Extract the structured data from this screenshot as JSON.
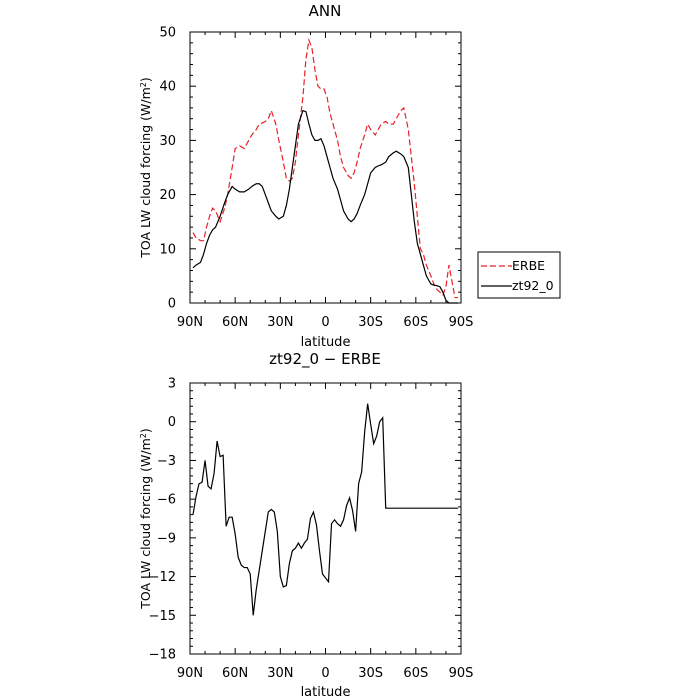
{
  "chart_data": [
    {
      "type": "line",
      "title": "ANN",
      "xlabel": "latitude",
      "ylabel": "TOA LW cloud forcing (W/m",
      "ylabel_sup": "2",
      "ylabel_end": ")",
      "xlim": [
        90,
        -90
      ],
      "ylim": [
        0,
        50
      ],
      "x_ticks": [
        90,
        60,
        30,
        0,
        -30,
        -60,
        -90
      ],
      "x_tick_labels": [
        "90N",
        "60N",
        "30N",
        "0",
        "30S",
        "60S",
        "90S"
      ],
      "y_ticks": [
        0,
        10,
        20,
        30,
        40,
        50
      ],
      "y_tick_labels": [
        "0",
        "10",
        "20",
        "30",
        "40",
        "50"
      ],
      "legend": {
        "placement": "right",
        "entries": [
          "ERBE",
          "zt92_0"
        ]
      },
      "series": [
        {
          "name": "ERBE",
          "color": "#e8212a",
          "dash": true,
          "x": [
            88,
            86,
            83,
            81,
            79,
            77,
            75,
            73,
            70,
            67,
            65,
            62,
            60,
            57,
            54,
            51,
            49,
            46,
            44,
            42,
            40,
            38,
            36,
            33,
            31,
            28,
            26,
            24,
            22,
            20,
            18,
            15,
            13,
            11,
            9,
            7,
            5,
            3,
            1,
            -1,
            -3,
            -5,
            -8,
            -10,
            -12,
            -15,
            -17,
            -19,
            -21,
            -23,
            -26,
            -28,
            -30,
            -33,
            -35,
            -37,
            -40,
            -42,
            -45,
            -47,
            -50,
            -52,
            -55,
            -57,
            -59,
            -61,
            -63,
            -65,
            -67,
            -70,
            -72,
            -74,
            -76,
            -78,
            -80,
            -82,
            -84,
            -86,
            -88
          ],
          "y": [
            13,
            12,
            11.5,
            11.5,
            14,
            16,
            17.5,
            17,
            15,
            17.5,
            20,
            25,
            28.5,
            29,
            28.5,
            30,
            31,
            32,
            33,
            33.2,
            33.5,
            34,
            35.5,
            33,
            30,
            26,
            23,
            22.5,
            23,
            26,
            31,
            38,
            45,
            48.5,
            47,
            43,
            40,
            39.5,
            39.5,
            38,
            35,
            33,
            30,
            27,
            25,
            23.5,
            23,
            24,
            26,
            28.5,
            31,
            33,
            32,
            31,
            32,
            33,
            33.5,
            33,
            33,
            34,
            35.5,
            36,
            32,
            27,
            22,
            16,
            10,
            9,
            7,
            5,
            3.5,
            2.5,
            2,
            1.5,
            3,
            7,
            4,
            1,
            1
          ]
        },
        {
          "name": "zt92_0",
          "color": "#000000",
          "dash": false,
          "x": [
            88,
            86,
            83,
            81,
            79,
            77,
            75,
            73,
            70,
            67,
            65,
            62,
            60,
            57,
            54,
            51,
            49,
            46,
            44,
            42,
            40,
            38,
            36,
            33,
            31,
            28,
            26,
            24,
            22,
            20,
            18,
            15,
            13,
            11,
            9,
            7,
            5,
            3,
            1,
            -1,
            -3,
            -5,
            -8,
            -10,
            -12,
            -15,
            -17,
            -19,
            -21,
            -23,
            -26,
            -28,
            -30,
            -33,
            -35,
            -37,
            -40,
            -42,
            -45,
            -47,
            -50,
            -52,
            -55,
            -57,
            -59,
            -61,
            -63,
            -65,
            -67,
            -70,
            -72,
            -74,
            -76,
            -78,
            -80,
            -82,
            -84,
            -86,
            -88
          ],
          "y": [
            6.5,
            7,
            7.5,
            9,
            11,
            12.5,
            13.5,
            14,
            16,
            18.5,
            20,
            21.5,
            21,
            20.5,
            20.5,
            21,
            21.5,
            22,
            22,
            21.5,
            20,
            18.5,
            17,
            16,
            15.5,
            16,
            18,
            21,
            25,
            29,
            33,
            35.5,
            35.3,
            33,
            31,
            30,
            30,
            30.3,
            29,
            27,
            25,
            23,
            21,
            19,
            17,
            15.5,
            15,
            15.5,
            16.5,
            18,
            20,
            22,
            24,
            25,
            25.3,
            25.5,
            26,
            27,
            27.7,
            28,
            27.5,
            27,
            25,
            20,
            15,
            11,
            9,
            7,
            5,
            3.5,
            3.3,
            3.2,
            3,
            2,
            0.5,
            0,
            0,
            0,
            0
          ]
        }
      ]
    },
    {
      "type": "line",
      "title": "zt92_0 − ERBE",
      "xlabel": "latitude",
      "ylabel": "TOA LW cloud forcing (W/m",
      "ylabel_sup": "2",
      "ylabel_end": ")",
      "xlim": [
        90,
        -90
      ],
      "ylim": [
        -18,
        3
      ],
      "x_ticks": [
        90,
        60,
        30,
        0,
        -30,
        -60,
        -90
      ],
      "x_tick_labels": [
        "90N",
        "60N",
        "30N",
        "0",
        "30S",
        "60S",
        "90S"
      ],
      "y_ticks": [
        -18,
        -15,
        -12,
        -9,
        -6,
        -3,
        0,
        3
      ],
      "y_tick_labels": [
        "−18",
        "−15",
        "−12",
        "−9",
        "−6",
        "−3",
        "0",
        "3"
      ],
      "series": [
        {
          "color": "#000000",
          "dash": false,
          "x": [
            88,
            86,
            84,
            82,
            80,
            78,
            76,
            74,
            72,
            70,
            68,
            66,
            64,
            62,
            60,
            58,
            56,
            54,
            52,
            50,
            48,
            46,
            44,
            42,
            40,
            38,
            36,
            34,
            32,
            30,
            28,
            26,
            24,
            22,
            20,
            18,
            16,
            14,
            12,
            10,
            8,
            6,
            4,
            2,
            0,
            -2,
            -4,
            -6,
            -8,
            -10,
            -12,
            -14,
            -16,
            -18,
            -20,
            -22,
            -24,
            -26,
            -28,
            -30,
            -32,
            -34,
            -36,
            -38,
            -40,
            -42,
            -44,
            -46,
            -48,
            -50,
            -52,
            -54,
            -56,
            -58,
            -60,
            -62,
            -64,
            -66,
            -68,
            -70,
            -72,
            -74,
            -76,
            -78,
            -80,
            -82,
            -84,
            -86,
            -88
          ],
          "y": [
            -7.2,
            -5.8,
            -4.8,
            -4.7,
            -3.0,
            -5.0,
            -5.2,
            -4.0,
            -1.5,
            -2.7,
            -2.6,
            -8.1,
            -7.4,
            -7.4,
            -8.7,
            -10.5,
            -11.1,
            -11.3,
            -11.3,
            -11.8,
            -15.0,
            -13.0,
            -11.5,
            -10.0,
            -8.5,
            -7.0,
            -6.8,
            -7.0,
            -8.5,
            -12.0,
            -12.8,
            -12.7,
            -11.0,
            -10.0,
            -9.8,
            -9.4,
            -9.8,
            -9.4,
            -9.1,
            -7.5,
            -7.0,
            -8.0,
            -10.0,
            -11.8,
            -12.1,
            -12.4,
            -7.9,
            -7.6,
            -7.9,
            -8.1,
            -7.6,
            -6.5,
            -5.9,
            -6.9,
            -8.5,
            -4.8,
            -3.9,
            -0.8,
            1.4,
            -0.2,
            -1.7,
            -1.1,
            0.0,
            0.3,
            -6.7,
            -6.7,
            -6.7,
            -6.7,
            -6.7,
            -6.7,
            -6.7,
            -6.7,
            -6.7,
            -6.7,
            -6.7,
            -6.7,
            -6.7,
            -6.7,
            -6.7,
            -6.7,
            -6.7,
            -6.7,
            -6.7,
            -6.7,
            -6.7,
            -6.7,
            -6.7,
            -6.7,
            -6.7
          ]
        }
      ]
    }
  ]
}
